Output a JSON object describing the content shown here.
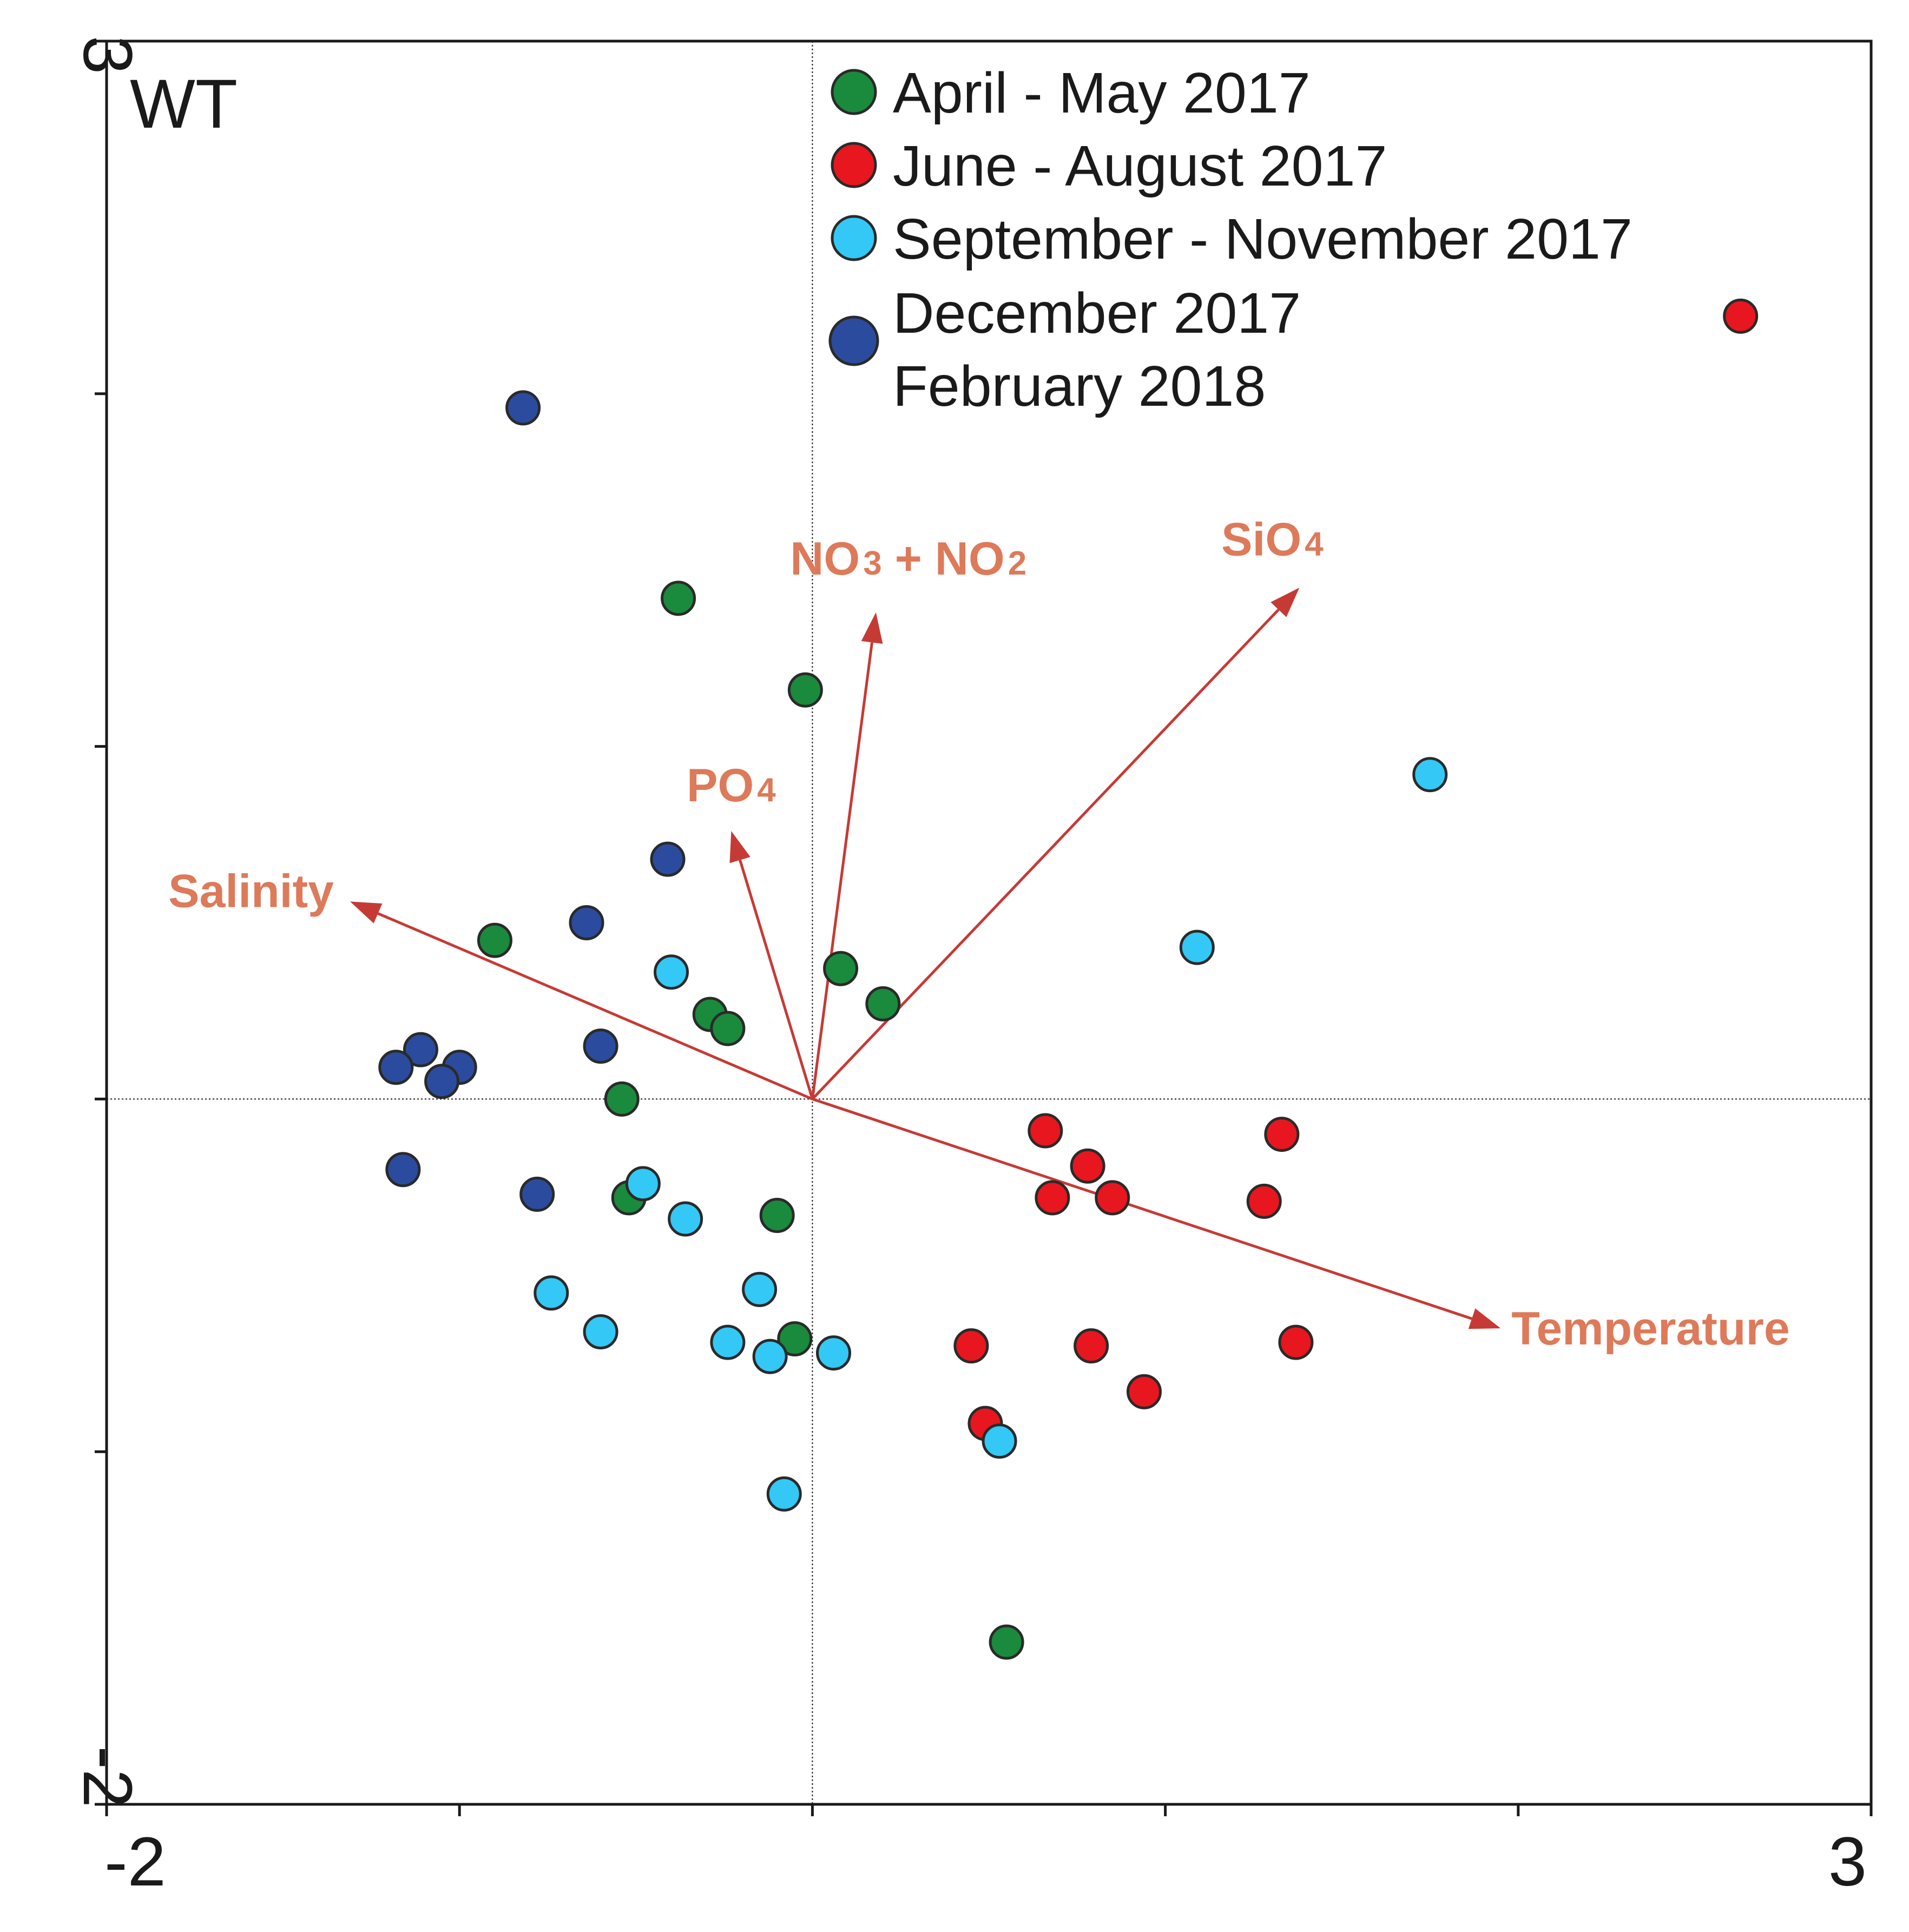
{
  "chart_data": {
    "type": "scatter",
    "title": "WT",
    "xlim": [
      -2,
      3
    ],
    "ylim": [
      -2,
      3
    ],
    "x_tick_labels": [
      "-2",
      "3"
    ],
    "y_tick_labels": [
      "3",
      "-2"
    ],
    "legend": {
      "placement": "top-center",
      "entries": [
        {
          "key": "apr_may",
          "lines": [
            "April - May 2017"
          ],
          "color": "#1a8a3c"
        },
        {
          "key": "jun_aug",
          "lines": [
            "June - August 2017"
          ],
          "color": "#e8161e"
        },
        {
          "key": "sep_nov",
          "lines": [
            "September - November 2017"
          ],
          "color": "#33c8f5"
        },
        {
          "key": "dec_feb",
          "lines": [
            "December 2017",
            "February 2018"
          ],
          "color": "#2b4b9e"
        }
      ]
    },
    "vectors": [
      {
        "label": "Temperature",
        "x": 1.95,
        "y": -0.65
      },
      {
        "label": "SiO4",
        "x": 1.38,
        "y": 1.45
      },
      {
        "label": "NO3 + NO2",
        "x": 0.18,
        "y": 1.38
      },
      {
        "label": "PO4",
        "x": -0.23,
        "y": 0.76
      },
      {
        "label": "Salinity",
        "x": -1.31,
        "y": 0.56
      }
    ],
    "series": [
      {
        "name": "April - May 2017",
        "key": "apr_may",
        "color": "#1a8a3c",
        "points": [
          [
            -0.38,
            1.42
          ],
          [
            -0.02,
            1.16
          ],
          [
            -0.9,
            0.45
          ],
          [
            0.08,
            0.37
          ],
          [
            0.2,
            0.27
          ],
          [
            -0.29,
            0.24
          ],
          [
            -0.24,
            0.2
          ],
          [
            -0.54,
            0.0
          ],
          [
            -0.52,
            -0.28
          ],
          [
            -0.1,
            -0.33
          ],
          [
            -0.05,
            -0.68
          ],
          [
            0.55,
            -1.54
          ]
        ]
      },
      {
        "name": "June - August 2017",
        "key": "jun_aug",
        "color": "#e8161e",
        "points": [
          [
            2.63,
            2.22
          ],
          [
            0.66,
            -0.09
          ],
          [
            0.78,
            -0.19
          ],
          [
            0.68,
            -0.28
          ],
          [
            0.85,
            -0.28
          ],
          [
            1.33,
            -0.1
          ],
          [
            1.28,
            -0.29
          ],
          [
            1.37,
            -0.69
          ],
          [
            0.45,
            -0.7
          ],
          [
            0.79,
            -0.7
          ],
          [
            0.94,
            -0.83
          ],
          [
            0.49,
            -0.92
          ]
        ]
      },
      {
        "name": "September - November 2017",
        "key": "sep_nov",
        "color": "#33c8f5",
        "points": [
          [
            1.75,
            0.92
          ],
          [
            1.09,
            0.43
          ],
          [
            -0.4,
            0.36
          ],
          [
            -0.48,
            -0.24
          ],
          [
            -0.36,
            -0.34
          ],
          [
            -0.74,
            -0.55
          ],
          [
            -0.15,
            -0.54
          ],
          [
            -0.6,
            -0.66
          ],
          [
            -0.24,
            -0.69
          ],
          [
            -0.12,
            -0.73
          ],
          [
            0.06,
            -0.72
          ],
          [
            0.53,
            -0.97
          ],
          [
            -0.08,
            -1.12
          ]
        ]
      },
      {
        "name": "December 2017 February 2018",
        "key": "dec_feb",
        "color": "#2b4b9e",
        "points": [
          [
            -0.82,
            1.96
          ],
          [
            -0.41,
            0.68
          ],
          [
            -0.64,
            0.5
          ],
          [
            -0.6,
            0.15
          ],
          [
            -1.11,
            0.14
          ],
          [
            -1.18,
            0.09
          ],
          [
            -1.0,
            0.09
          ],
          [
            -1.05,
            0.05
          ],
          [
            -1.16,
            -0.2
          ],
          [
            -0.78,
            -0.27
          ]
        ]
      }
    ]
  }
}
